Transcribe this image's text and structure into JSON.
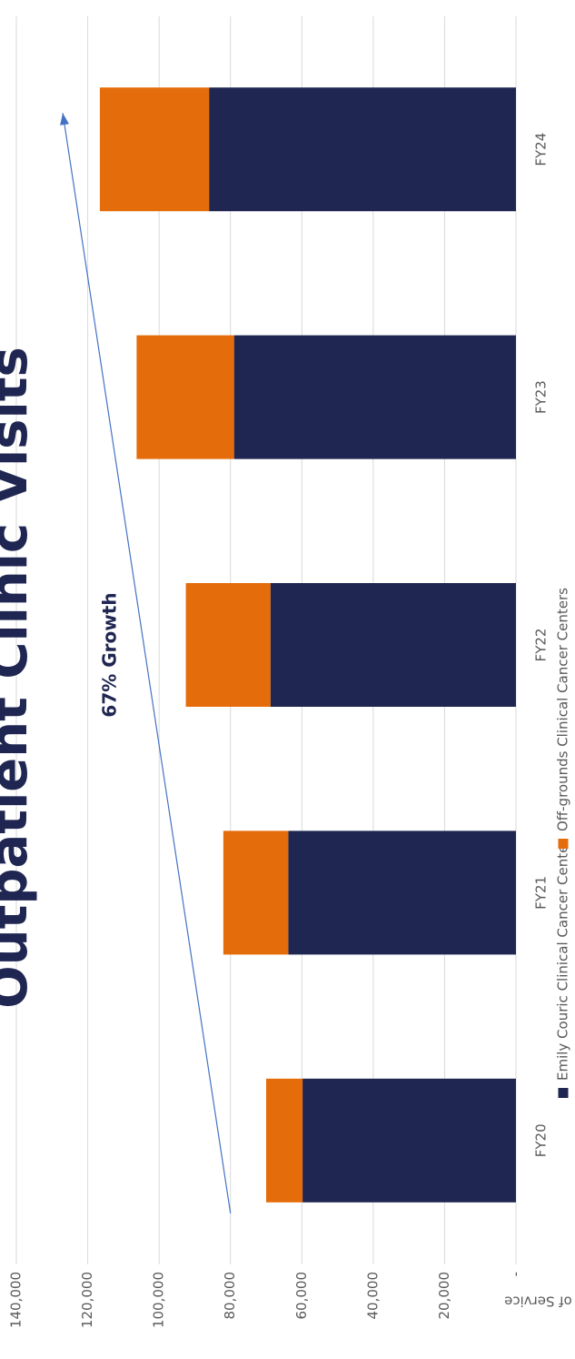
{
  "chart_data": {
    "type": "bar",
    "stacked": true,
    "orientation": "rotated-90",
    "title": "Outpatient Clinic Visits",
    "ylabel": "Units of Service",
    "categories": [
      "FY20",
      "FY21",
      "FY22",
      "FY23",
      "FY24"
    ],
    "series": [
      {
        "name": "Emily Couric Clinical Cancer Center",
        "values": [
          59800,
          63800,
          68800,
          79000,
          86000
        ],
        "color": "#1f2651"
      },
      {
        "name": "Off-grounds Clinical Cancer Centers",
        "values": [
          10200,
          18200,
          23700,
          27300,
          30600
        ],
        "color": "#e46c0a"
      }
    ],
    "ylim": [
      0,
      140000
    ],
    "yticks": [
      0,
      20000,
      40000,
      60000,
      80000,
      100000,
      120000,
      140000
    ],
    "ytick_labels": [
      "-",
      "20,000",
      "40,000",
      "60,000",
      "80,000",
      "100,000",
      "120,000",
      "140,000"
    ],
    "grid": true,
    "legend_position": "bottom",
    "annotation": {
      "text": "67% Growth",
      "arrow_from": {
        "category": "FY20",
        "value": 80000
      },
      "arrow_to": {
        "category": "FY24",
        "value": 127000
      }
    }
  }
}
